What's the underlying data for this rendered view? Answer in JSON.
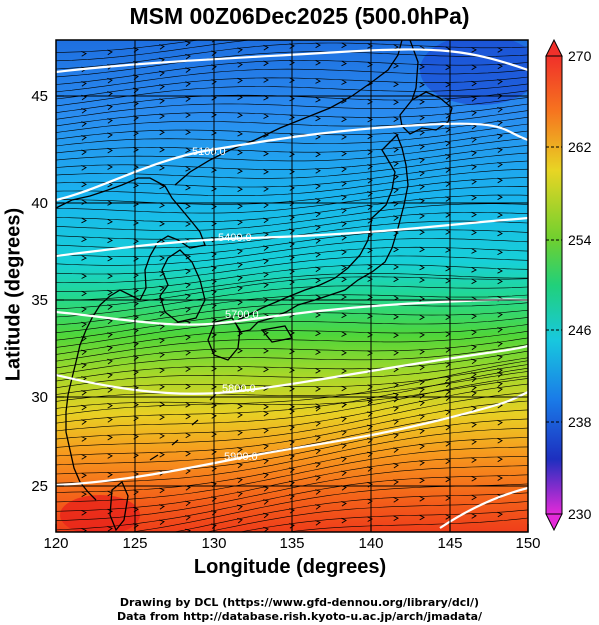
{
  "title": "MSM 00Z06Dec2025 (500.0hPa)",
  "x_axis": {
    "label": "Longitude (degrees)",
    "ticks": [
      "120",
      "125",
      "130",
      "135",
      "140",
      "145",
      "150"
    ]
  },
  "y_axis": {
    "label": "Latitude  (degrees)",
    "ticks": [
      "25",
      "30",
      "35",
      "40",
      "45"
    ]
  },
  "colorbar": {
    "ticks": [
      "270",
      "262",
      "254",
      "246",
      "238",
      "230"
    ],
    "min": 230,
    "max": 270
  },
  "contours": [
    {
      "label": "5100.0"
    },
    {
      "label": "5400.0"
    },
    {
      "label": "5700.0"
    },
    {
      "label": "5800.0"
    },
    {
      "label": "5900.0"
    }
  ],
  "credits": {
    "line1": "Drawing by DCL (https://www.gfd-dennou.org/library/dcl/)",
    "line2": "Data from http://database.rish.kyoto-u.ac.jp/arch/jmadata/"
  },
  "chart_data": {
    "type": "heatmap",
    "title": "MSM 00Z06Dec2025 (500.0hPa)",
    "xlabel": "Longitude (degrees)",
    "ylabel": "Latitude  (degrees)",
    "xlim": [
      120,
      150
    ],
    "ylim": [
      22.5,
      48
    ],
    "colorbar_range": [
      230,
      270
    ],
    "colors": {
      "gridline": "#000000",
      "contour": "#ffffff",
      "coast": "#000000"
    }
  }
}
